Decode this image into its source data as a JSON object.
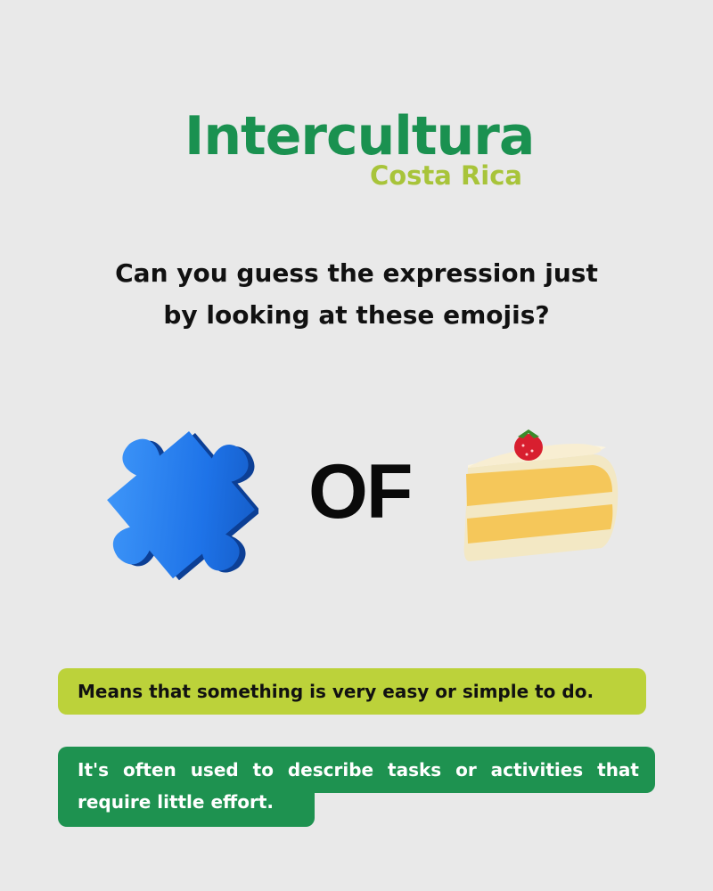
{
  "logo": {
    "name": "Intercultura",
    "subtitle": "Costa Rica",
    "primary_color": "#1a9150",
    "secondary_color": "#a8c43a"
  },
  "question": {
    "line1": "Can you guess the expression just",
    "line2": "by looking at these emojis?"
  },
  "emojis": {
    "left": "puzzle-piece-icon",
    "middle_text": "OF",
    "right": "cake-slice-icon"
  },
  "meaning": {
    "text": "Means that something is very easy or simple to do.",
    "bg_color": "#bcd23a"
  },
  "usage": {
    "text": "It's often used to describe tasks or activities that require little effort.",
    "bg_color": "#1e9250"
  }
}
